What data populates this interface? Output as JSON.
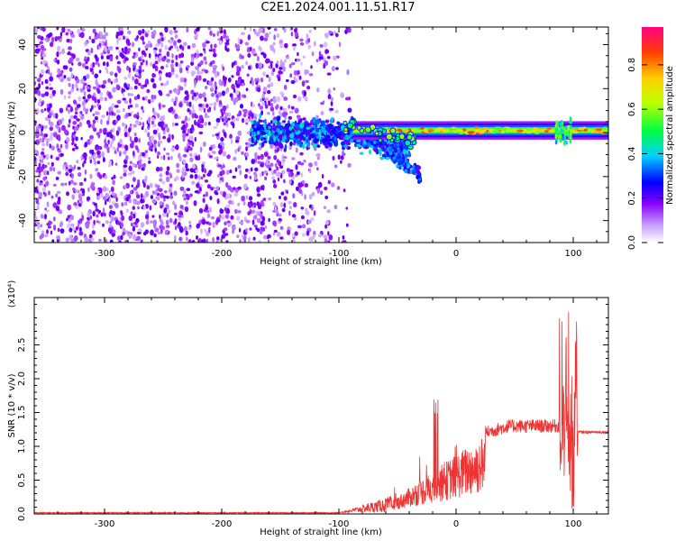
{
  "title": "C2E1.2024.001.11.51.R17",
  "chart_data": [
    {
      "type": "heatmap",
      "name": "spectrogram",
      "xlabel": "Height of straight line (km)",
      "ylabel": "Frequency (Hz)",
      "xlim": [
        -360,
        130
      ],
      "ylim": [
        -50,
        48
      ],
      "xticks": [
        -300,
        -200,
        -100,
        0,
        100
      ],
      "yticks": [
        -40,
        -20,
        0,
        20,
        40
      ],
      "colorbar": {
        "label": "Normalized spectral amplitude",
        "range": [
          0.0,
          0.97
        ],
        "ticks": [
          0.0,
          0.2,
          0.4,
          0.6,
          0.8
        ],
        "colors": [
          "#ffffff",
          "#a020f0",
          "#0000ff",
          "#00ffff",
          "#00ff00",
          "#ffff00",
          "#ff8000",
          "#ff0000",
          "#ff0080"
        ]
      },
      "regions": [
        {
          "description_x": [
            -360,
            -90
          ],
          "freq_range": [
            -50,
            48
          ],
          "amplitude": 0.15
        },
        {
          "description_x": [
            -175,
            -30
          ],
          "freq_center": [
            0,
            -3
          ],
          "amplitude": 0.35
        },
        {
          "description_x": [
            -90,
            130
          ],
          "freq_center": 1,
          "amplitude": 0.75
        },
        {
          "description_x": [
            85,
            100
          ],
          "freq_center": 0,
          "amplitude": 0.6
        }
      ]
    },
    {
      "type": "line",
      "name": "snr",
      "xlabel": "Height of straight line (km)",
      "ylabel": "SNR (10 * v/v)",
      "ymultiplier": "(x10⁴)",
      "xlim": [
        -360,
        130
      ],
      "ylim": [
        0,
        3.2
      ],
      "xticks": [
        -300,
        -200,
        -100,
        0,
        100
      ],
      "yticks": [
        0.0,
        0.5,
        1.0,
        1.5,
        2.0,
        2.5
      ],
      "color": "#ee3333",
      "key_points": [
        {
          "x": -360,
          "y": 0.01
        },
        {
          "x": -100,
          "y": 0.02
        },
        {
          "x": -60,
          "y": 0.15
        },
        {
          "x": -40,
          "y": 0.4
        },
        {
          "x": -20,
          "y": 0.75
        },
        {
          "x": 0,
          "y": 0.95
        },
        {
          "x": 30,
          "y": 1.2
        },
        {
          "x": 60,
          "y": 1.3
        },
        {
          "x": 90,
          "y": 1.3
        },
        {
          "x": 97,
          "y": 2.8
        },
        {
          "x": 100,
          "y": 0.1
        },
        {
          "x": 110,
          "y": 1.22
        },
        {
          "x": 130,
          "y": 1.2
        }
      ]
    }
  ]
}
